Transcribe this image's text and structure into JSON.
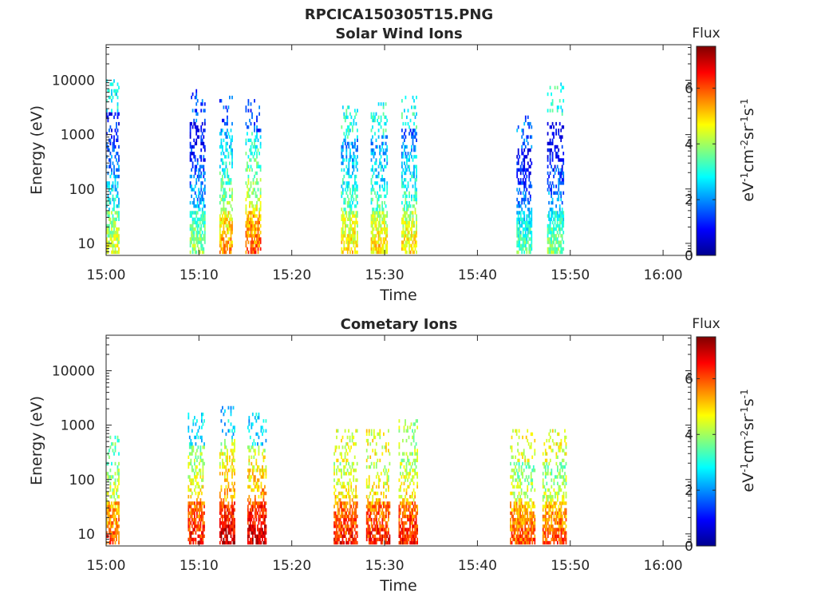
{
  "figure_title": "RPCICA150305T15.PNG",
  "colors": {
    "colormap": [
      "#00008f",
      "#0000ff",
      "#0080ff",
      "#00ffff",
      "#80ff80",
      "#ffff00",
      "#ff8000",
      "#ff0000",
      "#800000"
    ],
    "axis": "#262626"
  },
  "chart_data": [
    {
      "type": "heatmap",
      "title": "Solar Wind Ions",
      "xlabel": "Time",
      "ylabel": "Energy (eV)",
      "x_ticks": [
        "15:00",
        "15:10",
        "15:20",
        "15:30",
        "15:40",
        "15:50",
        "16:00"
      ],
      "x_range_minutes": [
        0,
        63
      ],
      "y_scale": "log",
      "y_ticks": [
        "10",
        "100",
        "1000",
        "10000"
      ],
      "y_range": [
        6,
        45000
      ],
      "colorbar": {
        "title": "Flux",
        "label": "eV-1cm-2sr-1s-1",
        "ticks": [
          "0",
          "2",
          "4",
          "6"
        ],
        "range": [
          0,
          7.5
        ]
      },
      "bursts": [
        {
          "t": [
            0.0,
            1.4
          ],
          "low_flux": 4.5,
          "high_e": 2500,
          "high_flux": 2.8
        },
        {
          "t": [
            9.0,
            10.6
          ],
          "low_flux": 4.0,
          "high_e": 1500,
          "high_flux": 1.6
        },
        {
          "t": [
            12.2,
            13.6
          ],
          "low_flux": 5.5,
          "high_e": 1200,
          "high_flux": 1.4
        },
        {
          "t": [
            15.0,
            16.6
          ],
          "low_flux": 6.0,
          "high_e": 1000,
          "high_flux": 1.5
        },
        {
          "t": [
            25.3,
            27.0
          ],
          "low_flux": 5.0,
          "high_e": 800,
          "high_flux": 3.0
        },
        {
          "t": [
            28.5,
            30.2
          ],
          "low_flux": 5.0,
          "high_e": 900,
          "high_flux": 3.0
        },
        {
          "t": [
            31.8,
            33.4
          ],
          "low_flux": 5.0,
          "high_e": 1200,
          "high_flux": 3.0
        },
        {
          "t": [
            44.2,
            45.8
          ],
          "low_flux": 3.5,
          "high_e": 500,
          "high_flux": 1.8
        },
        {
          "t": [
            47.5,
            49.3
          ],
          "low_flux": 3.8,
          "high_e": 2000,
          "high_flux": 3.0
        }
      ]
    },
    {
      "type": "heatmap",
      "title": "Cometary Ions",
      "xlabel": "Time",
      "ylabel": "Energy (eV)",
      "x_ticks": [
        "15:00",
        "15:10",
        "15:20",
        "15:30",
        "15:40",
        "15:50",
        "16:00"
      ],
      "x_range_minutes": [
        0,
        63
      ],
      "y_scale": "log",
      "y_ticks": [
        "10",
        "100",
        "1000",
        "10000"
      ],
      "y_range": [
        6,
        45000
      ],
      "colorbar": {
        "title": "Flux",
        "label": "eV-1cm-2sr-1s-1",
        "ticks": [
          "0",
          "2",
          "4",
          "6"
        ],
        "range": [
          0,
          7.5
        ]
      },
      "bursts": [
        {
          "t": [
            0.0,
            1.4
          ],
          "low_flux": 6.0,
          "high_e": 150,
          "high_flux": 3.5
        },
        {
          "t": [
            8.8,
            10.6
          ],
          "low_flux": 6.5,
          "high_e": 400,
          "high_flux": 2.5
        },
        {
          "t": [
            12.2,
            13.8
          ],
          "low_flux": 7.0,
          "high_e": 500,
          "high_flux": 2.5
        },
        {
          "t": [
            15.2,
            17.2
          ],
          "low_flux": 7.0,
          "high_e": 400,
          "high_flux": 2.5
        },
        {
          "t": [
            24.5,
            27.0
          ],
          "low_flux": 6.5,
          "high_e": 200,
          "high_flux": 4.5
        },
        {
          "t": [
            28.0,
            30.5
          ],
          "low_flux": 6.5,
          "high_e": 200,
          "high_flux": 4.5
        },
        {
          "t": [
            31.5,
            33.5
          ],
          "low_flux": 6.5,
          "high_e": 300,
          "high_flux": 4.0
        },
        {
          "t": [
            43.5,
            46.2
          ],
          "low_flux": 6.0,
          "high_e": 200,
          "high_flux": 4.5
        },
        {
          "t": [
            47.0,
            49.5
          ],
          "low_flux": 6.0,
          "high_e": 200,
          "high_flux": 4.5
        }
      ]
    }
  ]
}
